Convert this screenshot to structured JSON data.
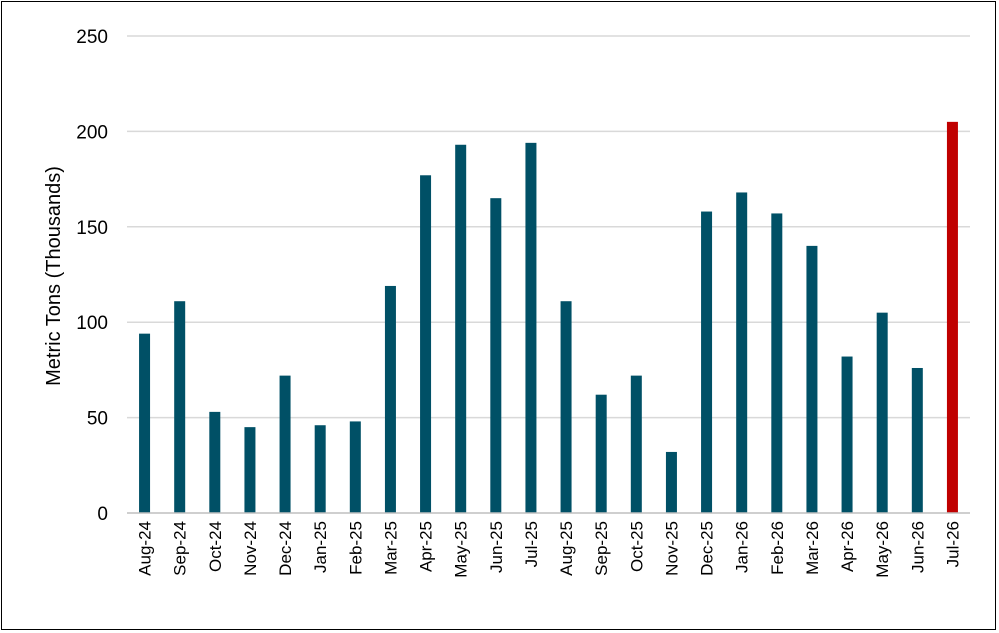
{
  "chart_data": {
    "type": "bar",
    "title": "",
    "xlabel": "",
    "ylabel": "Metric Tons (Thousands)",
    "ylim": [
      0,
      250
    ],
    "yticks": [
      0,
      50,
      100,
      150,
      200,
      250
    ],
    "grid": true,
    "legend": "none",
    "categories": [
      "Aug-24",
      "Sep-24",
      "Oct-24",
      "Nov-24",
      "Dec-24",
      "Jan-25",
      "Feb-25",
      "Mar-25",
      "Apr-25",
      "May-25",
      "Jun-25",
      "Jul-25",
      "Aug-25",
      "Sep-25",
      "Oct-25",
      "Nov-25",
      "Dec-25",
      "Jan-26",
      "Feb-26",
      "Mar-26",
      "Apr-26",
      "May-26",
      "Jun-26",
      "Jul-26"
    ],
    "values": [
      94,
      111,
      53,
      45,
      72,
      46,
      48,
      119,
      177,
      193,
      165,
      194,
      111,
      62,
      72,
      32,
      158,
      168,
      157,
      140,
      82,
      105,
      76,
      205
    ],
    "colors": {
      "bar": "#005066",
      "highlight": "#C00000",
      "grid": "#D9D9D9",
      "axis": "#BFBFBF"
    },
    "highlight_index": 23
  }
}
